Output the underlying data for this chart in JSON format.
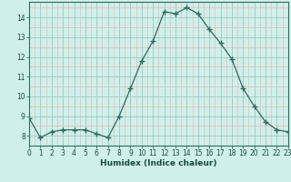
{
  "x": [
    0,
    1,
    2,
    3,
    4,
    5,
    6,
    7,
    8,
    9,
    10,
    11,
    12,
    13,
    14,
    15,
    16,
    17,
    18,
    19,
    20,
    21,
    22,
    23
  ],
  "y": [
    8.9,
    7.9,
    8.2,
    8.3,
    8.3,
    8.3,
    8.1,
    7.9,
    9.0,
    10.4,
    11.8,
    12.8,
    14.3,
    14.2,
    14.5,
    14.2,
    13.4,
    12.7,
    11.9,
    10.4,
    9.5,
    8.7,
    8.3,
    8.2
  ],
  "line_color": "#2e6b5e",
  "marker": "+",
  "marker_size": 4.0,
  "bg_color": "#cff0ea",
  "xlabel": "Humidex (Indice chaleur)",
  "xlabel_color": "#1a4a40",
  "tick_color": "#1a4a40",
  "ylim": [
    7.5,
    14.8
  ],
  "xlim": [
    0,
    23
  ],
  "yticks": [
    8,
    9,
    10,
    11,
    12,
    13,
    14
  ],
  "xticks": [
    0,
    1,
    2,
    3,
    4,
    5,
    6,
    7,
    8,
    9,
    10,
    11,
    12,
    13,
    14,
    15,
    16,
    17,
    18,
    19,
    20,
    21,
    22,
    23
  ],
  "major_grid_color": "#a0c8c0",
  "minor_grid_color": "#e8b8b8",
  "spine_color": "#2e6b5e"
}
